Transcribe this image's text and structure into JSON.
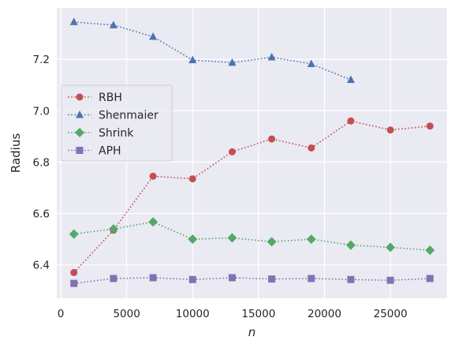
{
  "chart_data": {
    "type": "line",
    "title": "",
    "xlabel": "n",
    "ylabel": "Radius",
    "xlim": [
      -300,
      29300
    ],
    "ylim": [
      6.27,
      7.4
    ],
    "xticks": [
      0,
      5000,
      10000,
      15000,
      20000,
      25000
    ],
    "xtick_labels": [
      "0",
      "5000",
      "10000",
      "15000",
      "20000",
      "25000"
    ],
    "yticks": [
      6.4,
      6.6,
      6.8,
      7.0,
      7.2
    ],
    "ytick_labels": [
      "6.4",
      "6.6",
      "6.8",
      "7.0",
      "7.2"
    ],
    "grid": true,
    "legend_position": "center-left",
    "series": [
      {
        "name": "RBH",
        "color": "#c44e52",
        "marker": "circle",
        "x": [
          1000,
          4000,
          7000,
          10000,
          13000,
          16000,
          19000,
          22000,
          25000,
          28000
        ],
        "y": [
          6.37,
          6.535,
          6.745,
          6.735,
          6.84,
          6.89,
          6.855,
          6.96,
          6.925,
          6.94
        ]
      },
      {
        "name": "Shenmaier",
        "color": "#4c72b0",
        "marker": "triangle",
        "x": [
          1000,
          4000,
          7000,
          10000,
          13000,
          16000,
          19000,
          22000
        ],
        "y": [
          7.345,
          7.333,
          7.288,
          7.197,
          7.187,
          7.208,
          7.182,
          7.12
        ]
      },
      {
        "name": "Shrink",
        "color": "#55a868",
        "marker": "diamond",
        "x": [
          1000,
          4000,
          7000,
          10000,
          13000,
          16000,
          19000,
          22000,
          25000,
          28000
        ],
        "y": [
          6.52,
          6.54,
          6.567,
          6.5,
          6.505,
          6.49,
          6.5,
          6.477,
          6.468,
          6.457
        ]
      },
      {
        "name": "APH",
        "color": "#8172b3",
        "marker": "square",
        "x": [
          1000,
          4000,
          7000,
          10000,
          13000,
          16000,
          19000,
          22000,
          25000,
          28000
        ],
        "y": [
          6.328,
          6.347,
          6.35,
          6.343,
          6.35,
          6.345,
          6.347,
          6.343,
          6.34,
          6.347
        ]
      }
    ]
  }
}
